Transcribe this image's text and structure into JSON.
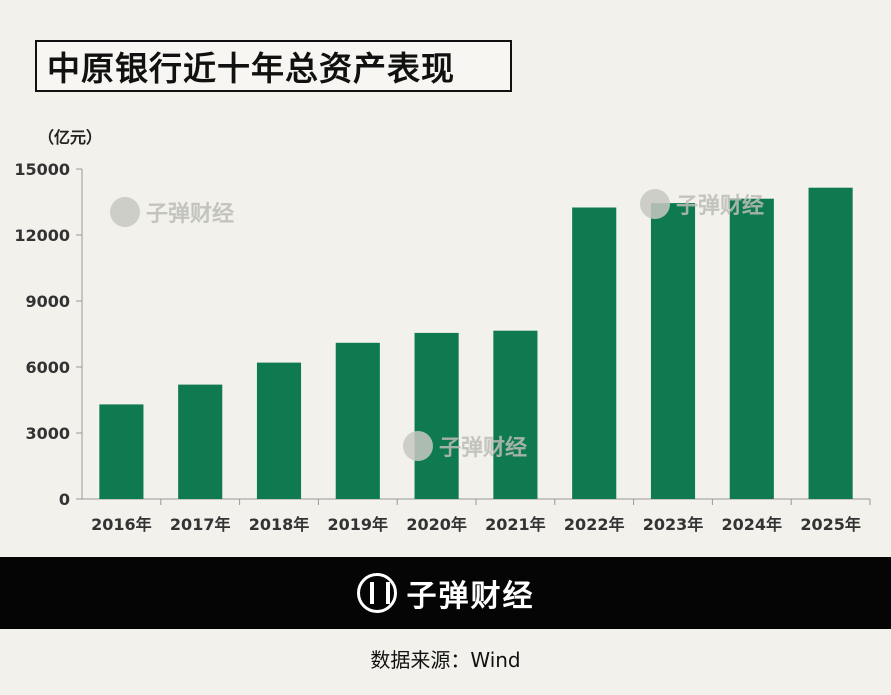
{
  "title": "中原银行近十年总资产表现",
  "unit_label": "（亿元）",
  "watermark_text": "子弹财经",
  "banner_text": "子弹财经",
  "source_text": "数据来源：Wind",
  "colors": {
    "bar": "#0f7a4f",
    "background": "#f2f1ec",
    "banner": "#050505"
  },
  "chart_data": {
    "type": "bar",
    "title": "中原银行近十年总资产表现",
    "ylabel": "（亿元）",
    "xlabel": "",
    "categories": [
      "2016年",
      "2017年",
      "2018年",
      "2019年",
      "2020年",
      "2021年",
      "2022年",
      "2023年",
      "2024年",
      "2025年"
    ],
    "values": [
      4300,
      5200,
      6200,
      7100,
      7550,
      7650,
      13250,
      13450,
      13650,
      14150
    ],
    "yticks": [
      0,
      3000,
      6000,
      9000,
      12000,
      15000
    ],
    "ylim": [
      0,
      15000
    ],
    "grid": false,
    "legend": "none"
  }
}
